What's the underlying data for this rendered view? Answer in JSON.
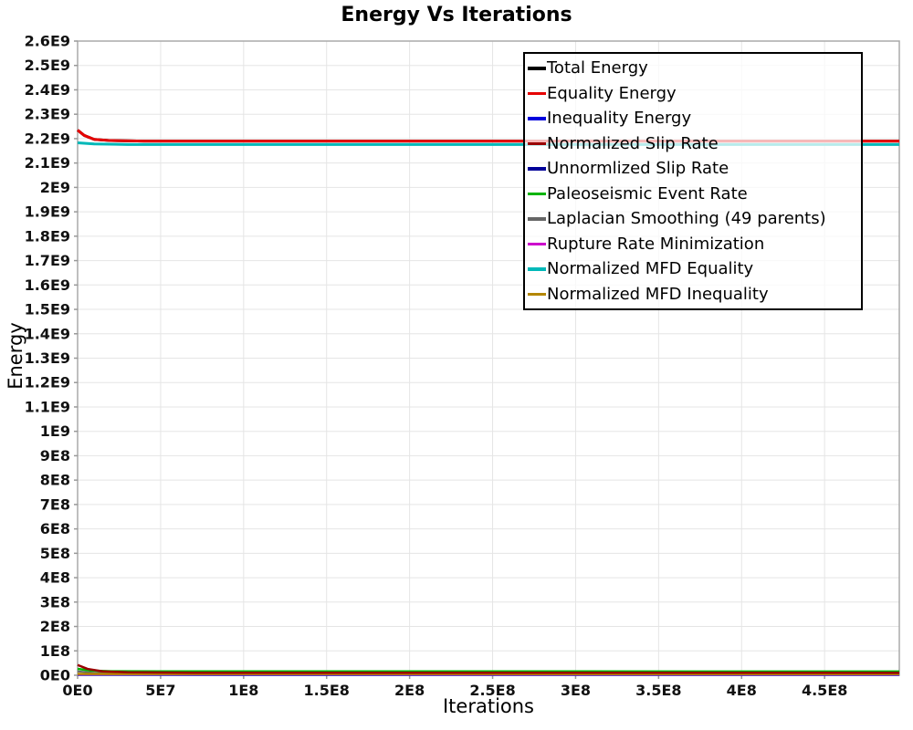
{
  "chart_data": {
    "type": "line",
    "title": "Energy Vs Iterations",
    "xlabel": "Iterations",
    "ylabel": "Energy",
    "xlim": [
      0,
      495000000
    ],
    "ylim": [
      0,
      2600000000
    ],
    "grid": true,
    "legend_position": "top-right",
    "x_ticks": [
      {
        "label": "0E0",
        "value": 0
      },
      {
        "label": "5E7",
        "value": 50000000
      },
      {
        "label": "1E8",
        "value": 100000000
      },
      {
        "label": "1.5E8",
        "value": 150000000
      },
      {
        "label": "2E8",
        "value": 200000000
      },
      {
        "label": "2.5E8",
        "value": 250000000
      },
      {
        "label": "3E8",
        "value": 300000000
      },
      {
        "label": "3.5E8",
        "value": 350000000
      },
      {
        "label": "4E8",
        "value": 400000000
      },
      {
        "label": "4.5E8",
        "value": 450000000
      }
    ],
    "y_ticks": [
      {
        "label": "0E0",
        "value": 0
      },
      {
        "label": "1E8",
        "value": 100000000
      },
      {
        "label": "2E8",
        "value": 200000000
      },
      {
        "label": "3E8",
        "value": 300000000
      },
      {
        "label": "4E8",
        "value": 400000000
      },
      {
        "label": "5E8",
        "value": 500000000
      },
      {
        "label": "6E8",
        "value": 600000000
      },
      {
        "label": "7E8",
        "value": 700000000
      },
      {
        "label": "8E8",
        "value": 800000000
      },
      {
        "label": "9E8",
        "value": 900000000
      },
      {
        "label": "1E9",
        "value": 1000000000
      },
      {
        "label": "1.1E9",
        "value": 1100000000
      },
      {
        "label": "1.2E9",
        "value": 1200000000
      },
      {
        "label": "1.3E9",
        "value": 1300000000
      },
      {
        "label": "1.4E9",
        "value": 1400000000
      },
      {
        "label": "1.5E9",
        "value": 1500000000
      },
      {
        "label": "1.6E9",
        "value": 1600000000
      },
      {
        "label": "1.7E9",
        "value": 1700000000
      },
      {
        "label": "1.8E9",
        "value": 1800000000
      },
      {
        "label": "1.9E9",
        "value": 1900000000
      },
      {
        "label": "2E9",
        "value": 2000000000
      },
      {
        "label": "2.1E9",
        "value": 2100000000
      },
      {
        "label": "2.2E9",
        "value": 2200000000
      },
      {
        "label": "2.3E9",
        "value": 2300000000
      },
      {
        "label": "2.4E9",
        "value": 2400000000
      },
      {
        "label": "2.5E9",
        "value": 2500000000
      },
      {
        "label": "2.6E9",
        "value": 2600000000
      }
    ],
    "series": [
      {
        "id": "total-energy",
        "name": "Total Energy",
        "color": "#000000",
        "width": 3,
        "points": [
          [
            0,
            2235000000.0
          ],
          [
            4000000.0,
            2213000000.0
          ],
          [
            10000000.0,
            2197000000.0
          ],
          [
            20000000.0,
            2192000000.0
          ],
          [
            40000000.0,
            2190000000.0
          ],
          [
            495000000.0,
            2190000000.0
          ]
        ]
      },
      {
        "id": "equality-energy",
        "name": "Equality Energy",
        "color": "#e60000",
        "width": 3,
        "points": [
          [
            0,
            2235000000.0
          ],
          [
            4000000.0,
            2213000000.0
          ],
          [
            10000000.0,
            2197000000.0
          ],
          [
            20000000.0,
            2192000000.0
          ],
          [
            40000000.0,
            2190000000.0
          ],
          [
            495000000.0,
            2190000000.0
          ]
        ]
      },
      {
        "id": "inequality-energy",
        "name": "Inequality Energy",
        "color": "#0000dd",
        "width": 2,
        "points": [
          [
            0,
            1200000.0
          ],
          [
            495000000.0,
            1000000.0
          ]
        ]
      },
      {
        "id": "normalized-slip-rate",
        "name": "Normalized Slip Rate",
        "color": "#990000",
        "width": 2.5,
        "points": [
          [
            0,
            42000000.0
          ],
          [
            6000000.0,
            26000000.0
          ],
          [
            15000000.0,
            16000000.0
          ],
          [
            30000000.0,
            12000000.0
          ],
          [
            70000000.0,
            10500000.0
          ],
          [
            495000000.0,
            10000000.0
          ]
        ]
      },
      {
        "id": "unnormlized-slip-rate",
        "name": "Unnormlized Slip Rate",
        "color": "#000099",
        "width": 2,
        "points": [
          [
            0,
            2200000.0
          ],
          [
            495000000.0,
            1800000.0
          ]
        ]
      },
      {
        "id": "paleoseismic-event-rate",
        "name": "Paleoseismic Event Rate",
        "color": "#00b400",
        "width": 2.5,
        "points": [
          [
            0,
            26000000.0
          ],
          [
            8000000.0,
            19000000.0
          ],
          [
            20000000.0,
            16500000.0
          ],
          [
            50000000.0,
            16000000.0
          ],
          [
            495000000.0,
            15500000.0
          ]
        ]
      },
      {
        "id": "laplacian-smoothing",
        "name": "Laplacian Smoothing (49 parents)",
        "color": "#666666",
        "width": 2,
        "points": [
          [
            0,
            16000000.0
          ],
          [
            10000000.0,
            10000000.0
          ],
          [
            30000000.0,
            7500000.0
          ],
          [
            495000000.0,
            7000000.0
          ]
        ]
      },
      {
        "id": "rupture-rate-minimization",
        "name": "Rupture Rate Minimization",
        "color": "#cc00cc",
        "width": 2,
        "points": [
          [
            0,
            3200000.0
          ],
          [
            495000000.0,
            2800000.0
          ]
        ]
      },
      {
        "id": "normalized-mfd-equality",
        "name": "Normalized MFD Equality",
        "color": "#00b8b8",
        "width": 3,
        "points": [
          [
            0,
            2183000000.0
          ],
          [
            10000000.0,
            2178000000.0
          ],
          [
            30000000.0,
            2176000000.0
          ],
          [
            495000000.0,
            2176000000.0
          ]
        ]
      },
      {
        "id": "normalized-mfd-inequality",
        "name": "Normalized MFD Inequality",
        "color": "#b38600",
        "width": 2.5,
        "points": [
          [
            0,
            5500000.0
          ],
          [
            20000000.0,
            5000000.0
          ],
          [
            495000000.0,
            4800000.0
          ]
        ]
      }
    ],
    "draw_order": [
      4,
      2,
      7,
      6,
      9,
      5,
      3,
      8,
      0,
      1
    ]
  },
  "colors": {
    "grid": "#e5e5e5",
    "frame": "#aaaaaa",
    "tick": "#999999",
    "legend_border": "#000000"
  }
}
